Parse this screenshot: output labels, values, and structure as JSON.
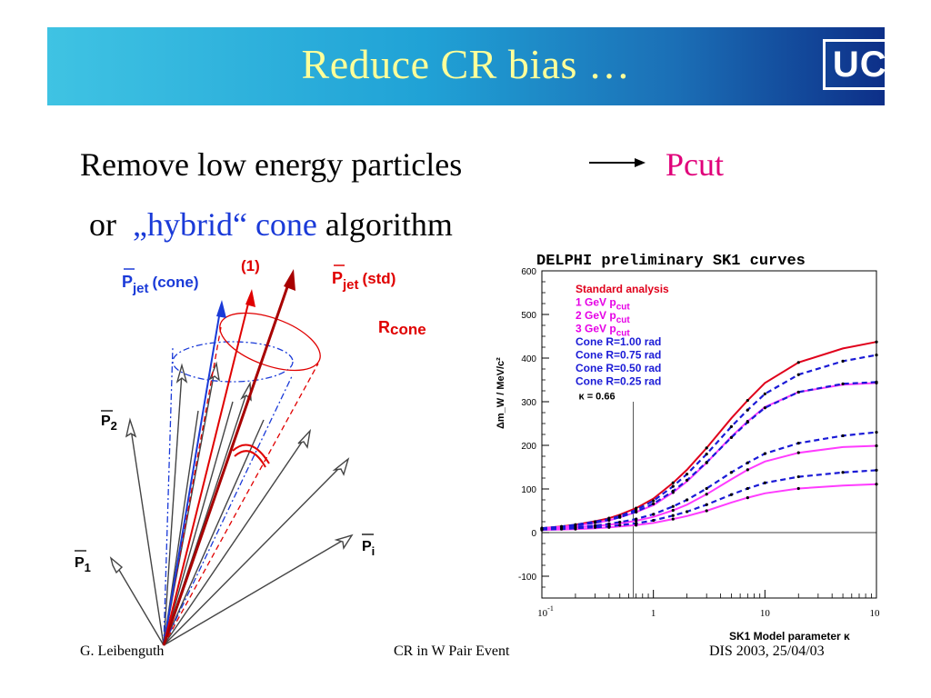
{
  "slide": {
    "title": "Reduce  CR bias …",
    "logo": "UCL",
    "line1": "Remove low energy particles",
    "line1_result": "Pcut",
    "line2_or": "or",
    "line2_hybrid": "„hybrid“ cone",
    "line2_algorithm": "algorithm"
  },
  "diagram": {
    "label_pjet_cone": "P",
    "label_pjet_cone_sub": "jet",
    "label_pjet_cone_tail": "(cone)",
    "label_1": "(1)",
    "label_pjet_std": "P",
    "label_pjet_std_sub": "jet",
    "label_pjet_std_tail": "(std)",
    "label_rcone": "R",
    "label_rcone_sub": "cone",
    "label_p2": "P",
    "label_p2_sub": "2",
    "label_p1": "P",
    "label_p1_sub": "1",
    "label_pi": "P",
    "label_pi_sub": "i"
  },
  "chart_data": {
    "type": "line",
    "title": "DELPHI preliminary SK1 curves",
    "xlabel": "SK1 Model parameter κ",
    "ylabel": "Δm_W / MeV/c²",
    "xscale": "log",
    "xlim": [
      0.1,
      100
    ],
    "ylim": [
      -150,
      600
    ],
    "x_ticks": [
      "10",
      "1",
      "10",
      "10"
    ],
    "x_tick_exp": "-1",
    "y_ticks": [
      "600",
      "500",
      "400",
      "300",
      "200",
      "100",
      "0",
      "-100"
    ],
    "vline_x": 0.66,
    "vline_label": "κ = 0.66",
    "grid": false,
    "legend_position": "top-left",
    "colors": {
      "red": "#e0001b",
      "magenta": "#ff3cff",
      "blue": "#1a1ad6"
    },
    "legend": [
      {
        "text": "Standard analysis",
        "color": "#e0001b"
      },
      {
        "text": "1 GeV p",
        "sub": "cut",
        "color": "#e600e6"
      },
      {
        "text": "2 GeV p",
        "sub": "cut",
        "color": "#e600e6"
      },
      {
        "text": "3 GeV p",
        "sub": "cut",
        "color": "#e600e6"
      },
      {
        "text": "Cone R=1.00 rad",
        "color": "#1a1ad6"
      },
      {
        "text": "Cone R=0.75 rad",
        "color": "#1a1ad6"
      },
      {
        "text": "Cone R=0.50 rad",
        "color": "#1a1ad6"
      },
      {
        "text": "Cone R=0.25 rad",
        "color": "#1a1ad6"
      }
    ],
    "x": [
      0.1,
      0.15,
      0.2,
      0.3,
      0.4,
      0.5,
      0.7,
      1,
      1.5,
      2,
      3,
      5,
      7,
      10,
      20,
      50,
      100
    ],
    "series": [
      {
        "style": "solid",
        "color": "#e0001b",
        "values": [
          10,
          14,
          18,
          26,
          33,
          41,
          56,
          78,
          114,
          144,
          194,
          262,
          303,
          343,
          390,
          422,
          437
        ]
      },
      {
        "style": "solid",
        "color": "#ff3cff",
        "values": [
          10,
          13,
          16,
          22,
          28,
          35,
          47,
          63,
          92,
          117,
          160,
          220,
          255,
          288,
          322,
          339,
          343
        ]
      },
      {
        "style": "solid",
        "color": "#ff3cff",
        "values": [
          8,
          10,
          12,
          15,
          18,
          21,
          27,
          36,
          51,
          64,
          88,
          122,
          144,
          163,
          183,
          196,
          199
        ]
      },
      {
        "style": "solid",
        "color": "#ff3cff",
        "values": [
          6,
          7,
          8,
          10,
          12,
          14,
          17,
          22,
          31,
          38,
          50,
          69,
          80,
          90,
          101,
          108,
          111
        ]
      },
      {
        "style": "dashed",
        "color": "#1a1ad6",
        "values": [
          10,
          14,
          18,
          25,
          31,
          38,
          52,
          73,
          106,
          134,
          180,
          243,
          281,
          318,
          362,
          393,
          407
        ]
      },
      {
        "style": "dashed",
        "color": "#1a1ad6",
        "values": [
          10,
          13,
          16,
          23,
          29,
          35,
          48,
          66,
          95,
          120,
          161,
          218,
          253,
          286,
          322,
          341,
          345
        ]
      },
      {
        "style": "dashed",
        "color": "#1a1ad6",
        "values": [
          8,
          10,
          12,
          16,
          20,
          24,
          31,
          42,
          60,
          75,
          101,
          138,
          160,
          181,
          205,
          222,
          230
        ]
      },
      {
        "style": "dashed",
        "color": "#1a1ad6",
        "values": [
          7,
          8,
          10,
          12,
          14,
          17,
          21,
          28,
          39,
          48,
          64,
          87,
          101,
          114,
          128,
          138,
          143
        ]
      }
    ]
  },
  "footer": {
    "left": "G. Leibenguth",
    "center": "CR in W Pair Event",
    "right": "DIS 2003, 25/04/03"
  }
}
